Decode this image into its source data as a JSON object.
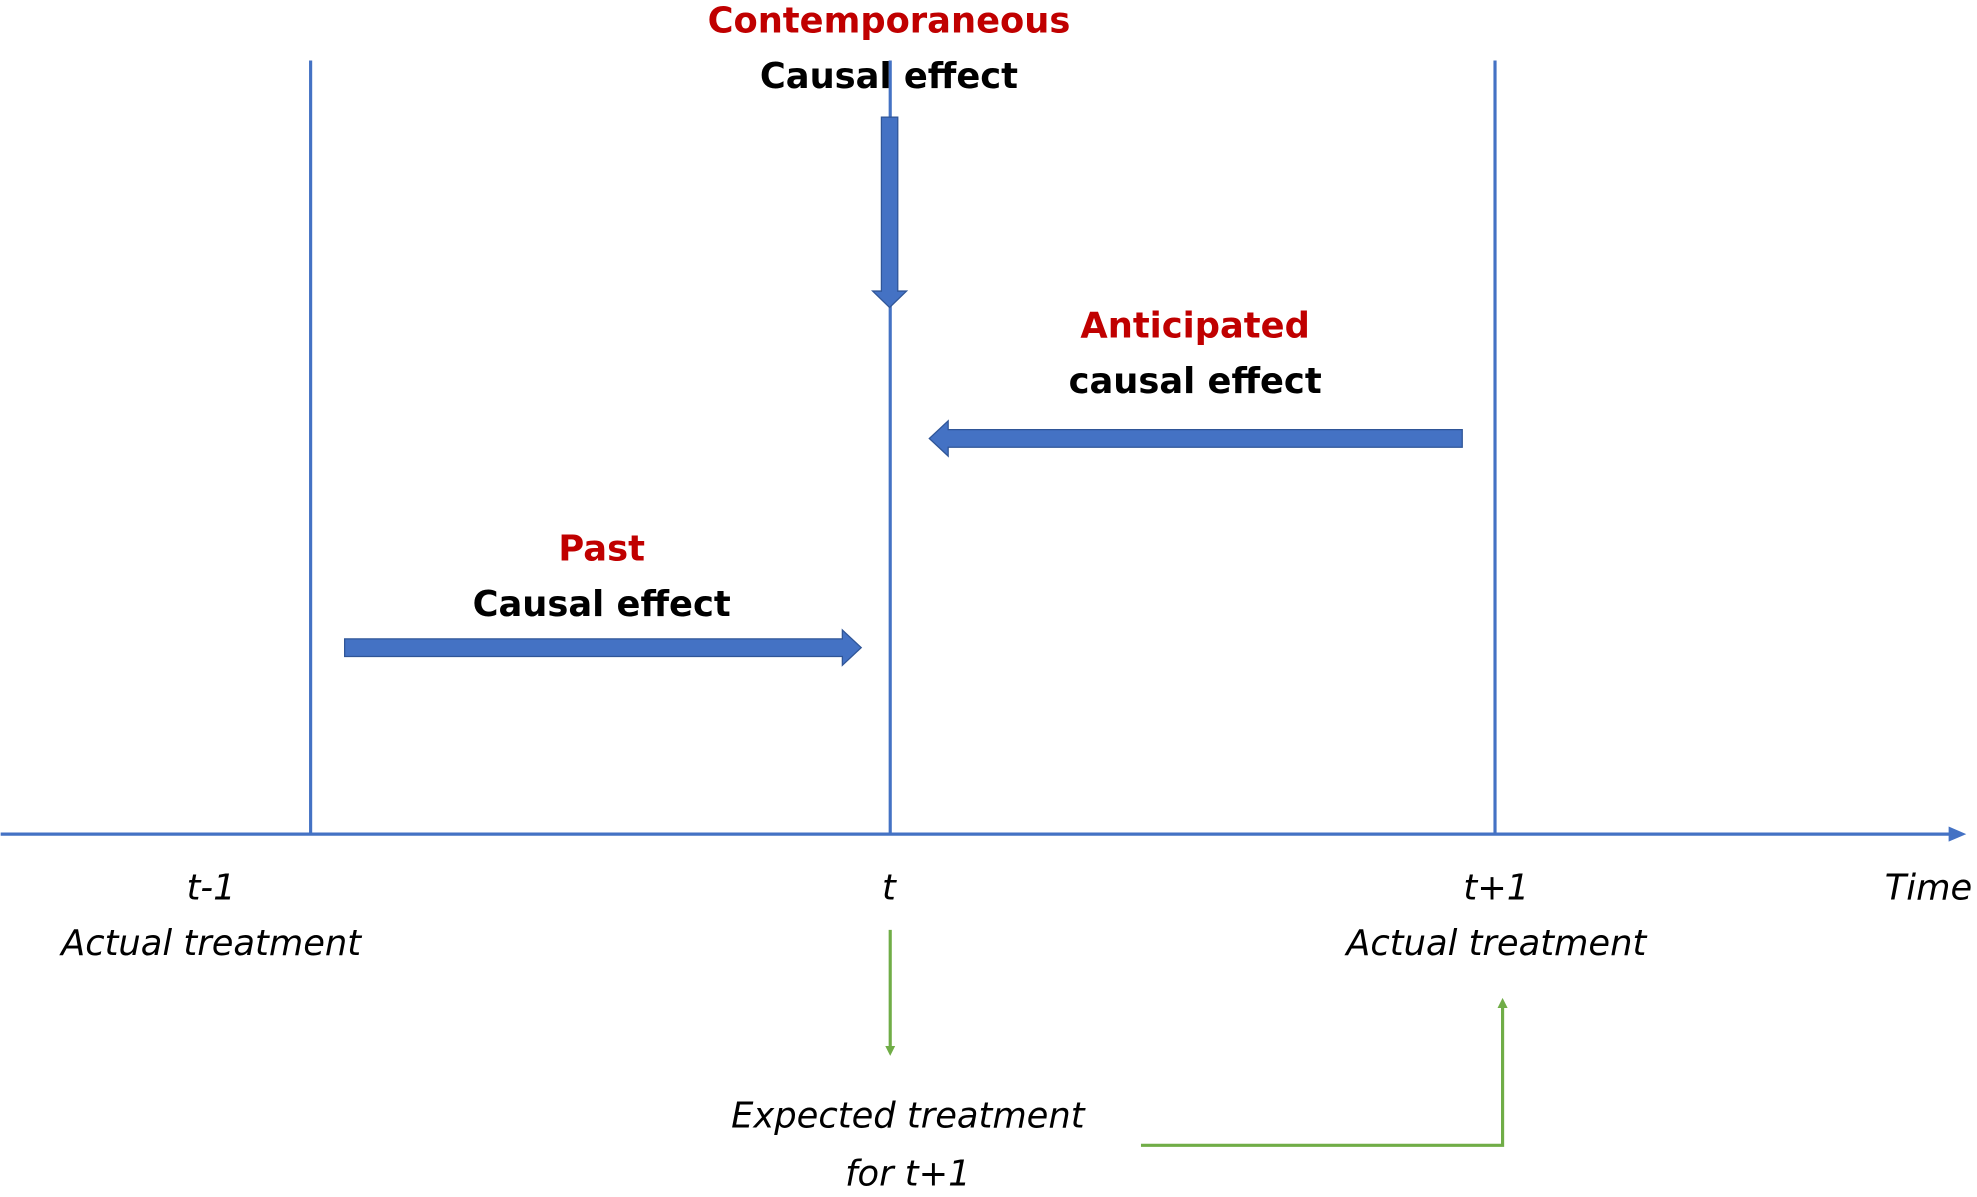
{
  "effects": [
    {
      "qualifier": "Contemporaneous",
      "label": "Causal effect"
    },
    {
      "qualifier": "Anticipated",
      "label": "causal effect"
    },
    {
      "qualifier": "Past",
      "label": "Causal effect"
    }
  ],
  "axis": {
    "label": "Time",
    "ticks": [
      {
        "label": "t-1",
        "caption": "Actual treatment"
      },
      {
        "label": "t"
      },
      {
        "label": "t+1",
        "caption": "Actual treatment"
      }
    ]
  },
  "expected": {
    "label": "Expected treatment",
    "sublabel": "for t+1"
  }
}
